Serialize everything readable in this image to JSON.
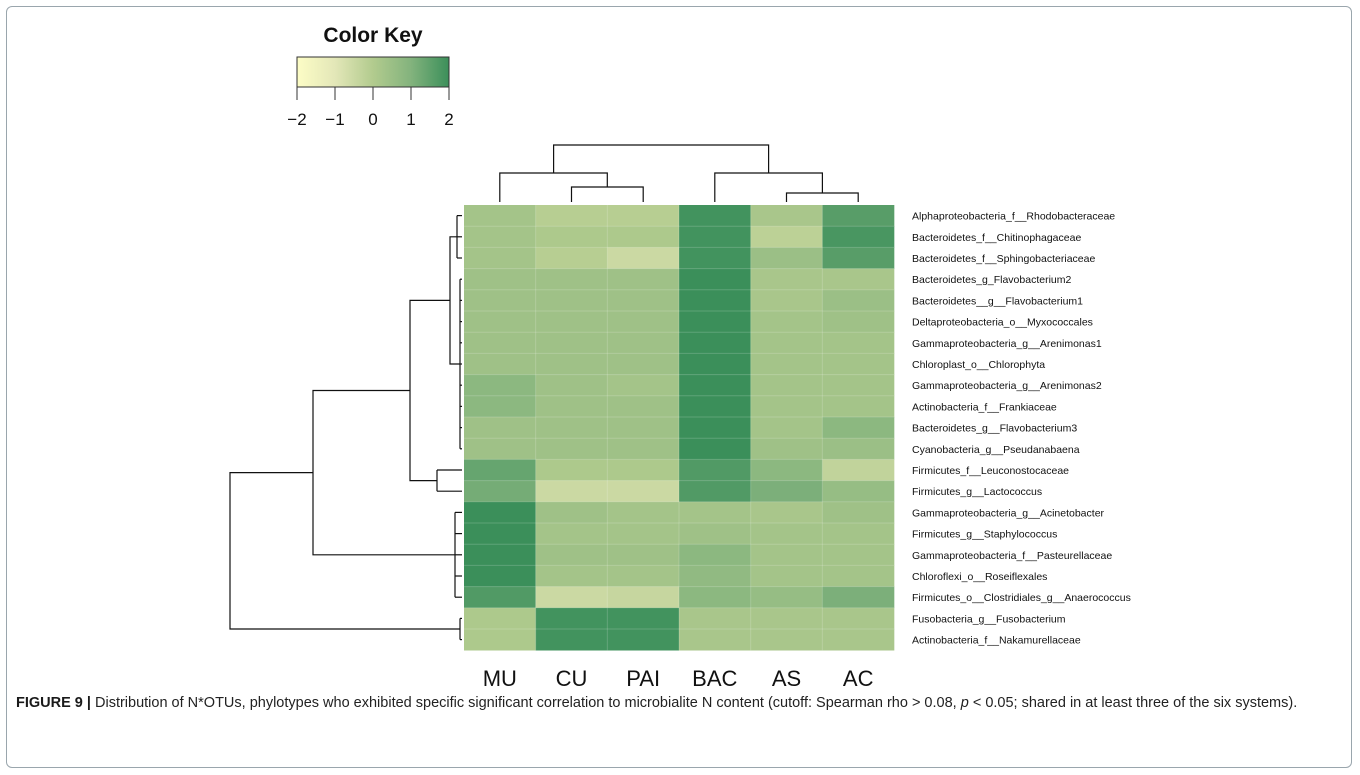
{
  "chart_data": {
    "type": "heatmap",
    "title": "",
    "color_key": {
      "title": "Color Key",
      "ticks": [
        "−2",
        "−1",
        "0",
        "1",
        "2"
      ],
      "range": [
        -2,
        2
      ],
      "colors": [
        "#fdfdc6",
        "#e3e7b8",
        "#b2cb8e",
        "#83b37d",
        "#3b8f5a"
      ]
    },
    "columns": [
      "MU",
      "CU",
      "PAI",
      "BAC",
      "AS",
      "AC"
    ],
    "rows": [
      "Alphaproteobacteria_f__Rhodobacteraceae",
      "Bacteroidetes_f__Chitinophagaceae",
      "Bacteroidetes_f__Sphingobacteriaceae",
      "Bacteroidetes_g_Flavobacterium2",
      "Bacteroidetes__g__Flavobacterium1",
      "Deltaproteobacteria_o__Myxococcales",
      "Gammaproteobacteria_g__Arenimonas1",
      "Chloroplast_o__Chlorophyta",
      "Gammaproteobacteria_g__Arenimonas2",
      "Actinobacteria_f__Frankiaceae",
      "Bacteroidetes_g__Flavobacterium3",
      "Cyanobacteria_g__Pseudanabaena",
      "Firmicutes_f__Leuconostocaceae",
      "Firmicutes_g__Lactococcus",
      "Gammaproteobacteria_g__Acinetobacter",
      "Firmicutes_g__Staphylococcus",
      "Gammaproteobacteria_f__Pasteurellaceae",
      "Chloroflexi_o__Roseiflexales",
      "Firmicutes_o__Clostridiales_g__Anaerococcus",
      "Fusobacteria_g__Fusobacterium",
      "Actinobacteria_f__Nakamurellaceae"
    ],
    "values": [
      [
        0.3,
        -0.1,
        -0.1,
        1.9,
        0.2,
        1.6
      ],
      [
        0.3,
        0.1,
        0.1,
        1.9,
        -0.2,
        1.8
      ],
      [
        0.3,
        -0.1,
        -0.5,
        1.9,
        0.5,
        1.6
      ],
      [
        0.4,
        0.4,
        0.4,
        2.0,
        0.2,
        0.2
      ],
      [
        0.4,
        0.4,
        0.4,
        2.0,
        0.2,
        0.5
      ],
      [
        0.4,
        0.4,
        0.4,
        2.0,
        0.3,
        0.4
      ],
      [
        0.4,
        0.4,
        0.4,
        2.0,
        0.3,
        0.3
      ],
      [
        0.4,
        0.4,
        0.4,
        2.0,
        0.3,
        0.3
      ],
      [
        0.8,
        0.4,
        0.3,
        2.0,
        0.3,
        0.3
      ],
      [
        0.8,
        0.4,
        0.4,
        2.0,
        0.3,
        0.3
      ],
      [
        0.4,
        0.4,
        0.4,
        2.0,
        0.3,
        0.8
      ],
      [
        0.4,
        0.4,
        0.4,
        2.0,
        0.4,
        0.5
      ],
      [
        1.4,
        0.1,
        0.1,
        1.7,
        0.8,
        -0.3
      ],
      [
        1.2,
        -0.5,
        -0.5,
        1.7,
        1.1,
        0.6
      ],
      [
        2.0,
        0.4,
        0.3,
        0.3,
        0.2,
        0.4
      ],
      [
        2.0,
        0.3,
        0.3,
        0.4,
        0.3,
        0.3
      ],
      [
        2.0,
        0.4,
        0.4,
        0.8,
        0.3,
        0.3
      ],
      [
        2.0,
        0.3,
        0.3,
        0.7,
        0.3,
        0.3
      ],
      [
        1.7,
        -0.5,
        -0.4,
        0.8,
        0.6,
        1.1
      ],
      [
        0.1,
        1.9,
        1.9,
        0.2,
        0.2,
        0.2
      ],
      [
        0.1,
        1.9,
        1.9,
        0.2,
        0.2,
        0.2
      ]
    ],
    "col_dendrogram": [
      [
        4,
        5
      ],
      [
        1,
        2
      ],
      [
        0,
        [
          1,
          2
        ]
      ],
      [
        3,
        [
          4,
          5
        ]
      ],
      [
        [
          0,
          [
            1,
            2
          ]
        ],
        [
          3,
          [
            4,
            5
          ]
        ]
      ]
    ],
    "grid": false,
    "legend_position": "top-left"
  },
  "caption": {
    "label": "FIGURE 9 |",
    "text_before": " Distribution of N*OTUs, phylotypes who exhibited specific significant correlation to microbialite N content (cutoff: Spearman rho > 0.08, ",
    "italic": "p",
    "text_after": " < 0.05; shared in at least three of the six systems)."
  }
}
